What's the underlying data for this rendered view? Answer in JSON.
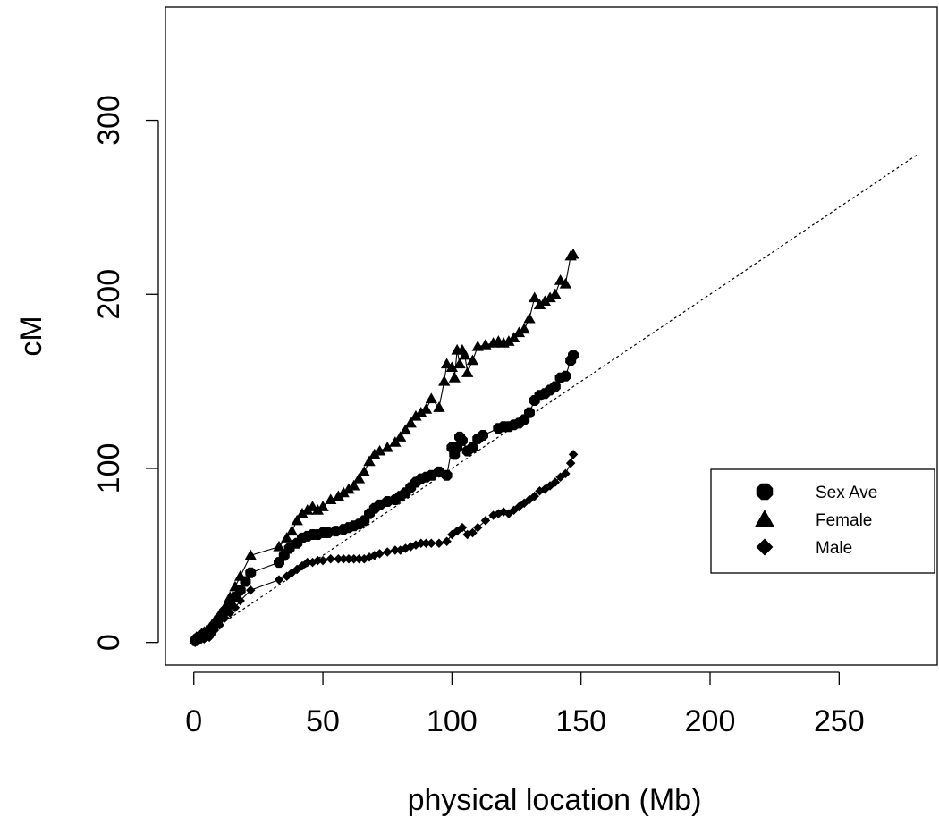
{
  "chart_data": {
    "type": "line",
    "title": "",
    "xlabel": "physical location (Mb)",
    "ylabel": "cM",
    "xlim": [
      -11,
      288
    ],
    "ylim": [
      -13,
      365
    ],
    "xticks": [
      0,
      50,
      100,
      150,
      200,
      250
    ],
    "yticks": [
      0,
      100,
      200,
      300
    ],
    "grid": false,
    "legend_position": "right",
    "reference_line": {
      "style": "dotted",
      "x": [
        0,
        280
      ],
      "y": [
        0,
        280
      ]
    },
    "series": [
      {
        "name": "Sex Ave",
        "marker": "octagon",
        "x": [
          0.5,
          1,
          2,
          3,
          4,
          5,
          6,
          7,
          8,
          10,
          12,
          14,
          16,
          18,
          20,
          22,
          33,
          35,
          37,
          40,
          42,
          44,
          46,
          48,
          50,
          52,
          55,
          58,
          60,
          62,
          64,
          66,
          68,
          70,
          72,
          75,
          78,
          80,
          82,
          84,
          86,
          88,
          90,
          92,
          95,
          98,
          100,
          101,
          102,
          103,
          104,
          106,
          108,
          110,
          112,
          118,
          120,
          122,
          124,
          126,
          128,
          130,
          132,
          134,
          136,
          138,
          140,
          142,
          144,
          146,
          147
        ],
        "y": [
          1,
          2,
          3,
          4,
          4,
          5,
          6,
          8,
          10,
          14,
          18,
          22,
          26,
          30,
          35,
          40,
          46,
          50,
          54,
          57,
          60,
          61,
          62,
          62,
          63,
          63,
          64,
          65,
          66,
          67,
          68,
          70,
          74,
          77,
          79,
          81,
          82,
          84,
          86,
          89,
          92,
          94,
          95,
          96,
          98,
          96,
          112,
          108,
          112,
          118,
          116,
          110,
          112,
          117,
          119,
          123,
          124,
          124,
          125,
          126,
          128,
          132,
          139,
          142,
          143,
          145,
          147,
          152,
          153,
          162,
          165
        ]
      },
      {
        "name": "Female",
        "marker": "triangle",
        "x": [
          0.5,
          1,
          2,
          3,
          4,
          5,
          6,
          7,
          8,
          10,
          12,
          14,
          16,
          18,
          22,
          33,
          36,
          38,
          40,
          42,
          44,
          46,
          48,
          50,
          53,
          56,
          58,
          60,
          62,
          64,
          66,
          68,
          70,
          72,
          75,
          78,
          80,
          82,
          84,
          86,
          88,
          90,
          92,
          95,
          97,
          98,
          100,
          101,
          102,
          103,
          104,
          105,
          106,
          108,
          110,
          113,
          116,
          118,
          120,
          122,
          124,
          126,
          128,
          130,
          132,
          134,
          136,
          138,
          140,
          142,
          144,
          146,
          147
        ],
        "y": [
          2,
          3,
          4,
          5,
          6,
          7,
          8,
          10,
          12,
          16,
          20,
          26,
          32,
          38,
          50,
          55,
          60,
          64,
          70,
          74,
          76,
          78,
          76,
          78,
          82,
          84,
          86,
          88,
          90,
          94,
          98,
          104,
          108,
          110,
          112,
          115,
          118,
          122,
          126,
          130,
          132,
          134,
          140,
          135,
          150,
          160,
          158,
          152,
          168,
          160,
          168,
          165,
          155,
          162,
          170,
          171,
          172,
          173,
          172,
          173,
          175,
          178,
          180,
          186,
          198,
          194,
          196,
          198,
          200,
          208,
          206,
          222,
          223
        ]
      },
      {
        "name": "Male",
        "marker": "diamond",
        "x": [
          0.5,
          1,
          2,
          3,
          4,
          5,
          6,
          7,
          8,
          10,
          12,
          14,
          16,
          18,
          22,
          33,
          36,
          38,
          40,
          42,
          44,
          46,
          48,
          50,
          53,
          56,
          58,
          60,
          62,
          64,
          66,
          68,
          70,
          72,
          75,
          78,
          80,
          82,
          84,
          86,
          88,
          90,
          92,
          95,
          98,
          100,
          102,
          104,
          106,
          108,
          110,
          113,
          116,
          118,
          120,
          122,
          124,
          126,
          128,
          130,
          132,
          134,
          136,
          138,
          140,
          142,
          144,
          146,
          147
        ],
        "y": [
          0,
          1,
          1,
          2,
          2,
          3,
          3,
          5,
          7,
          10,
          14,
          17,
          20,
          24,
          30,
          36,
          38,
          40,
          42,
          44,
          46,
          46,
          47,
          47,
          48,
          48,
          48,
          48,
          48,
          48,
          48,
          49,
          50,
          51,
          52,
          53,
          53,
          54,
          55,
          56,
          57,
          57,
          57,
          57,
          58,
          62,
          64,
          66,
          62,
          63,
          66,
          70,
          73,
          74,
          75,
          74,
          76,
          78,
          80,
          82,
          84,
          87,
          88,
          90,
          92,
          95,
          97,
          103,
          108
        ]
      }
    ]
  }
}
